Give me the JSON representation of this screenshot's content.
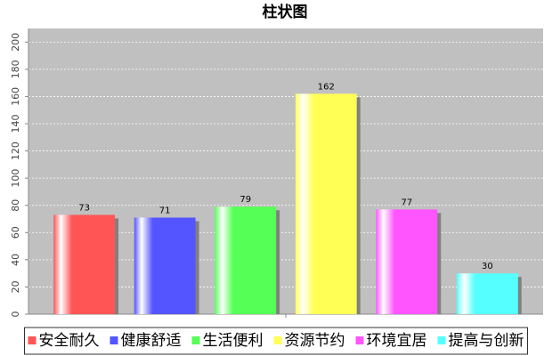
{
  "chart_data": {
    "type": "bar",
    "title": "柱状图",
    "categories": [
      null
    ],
    "series": [
      {
        "name": "安全耐久",
        "color": "#ff5555",
        "values": [
          73
        ]
      },
      {
        "name": "健康舒适",
        "color": "#5555ff",
        "values": [
          71
        ]
      },
      {
        "name": "生活便利",
        "color": "#55ff55",
        "values": [
          79
        ]
      },
      {
        "name": "资源节约",
        "color": "#ffff55",
        "values": [
          162
        ]
      },
      {
        "name": "环境宜居",
        "color": "#ff55ff",
        "values": [
          77
        ]
      },
      {
        "name": "提高与创新",
        "color": "#55ffff",
        "values": [
          30
        ]
      }
    ],
    "ylim": [
      0,
      210
    ],
    "yticks": [
      0,
      20,
      40,
      60,
      80,
      100,
      120,
      140,
      160,
      180,
      200
    ],
    "grid": true,
    "legend": "bottom",
    "show_values": true
  }
}
